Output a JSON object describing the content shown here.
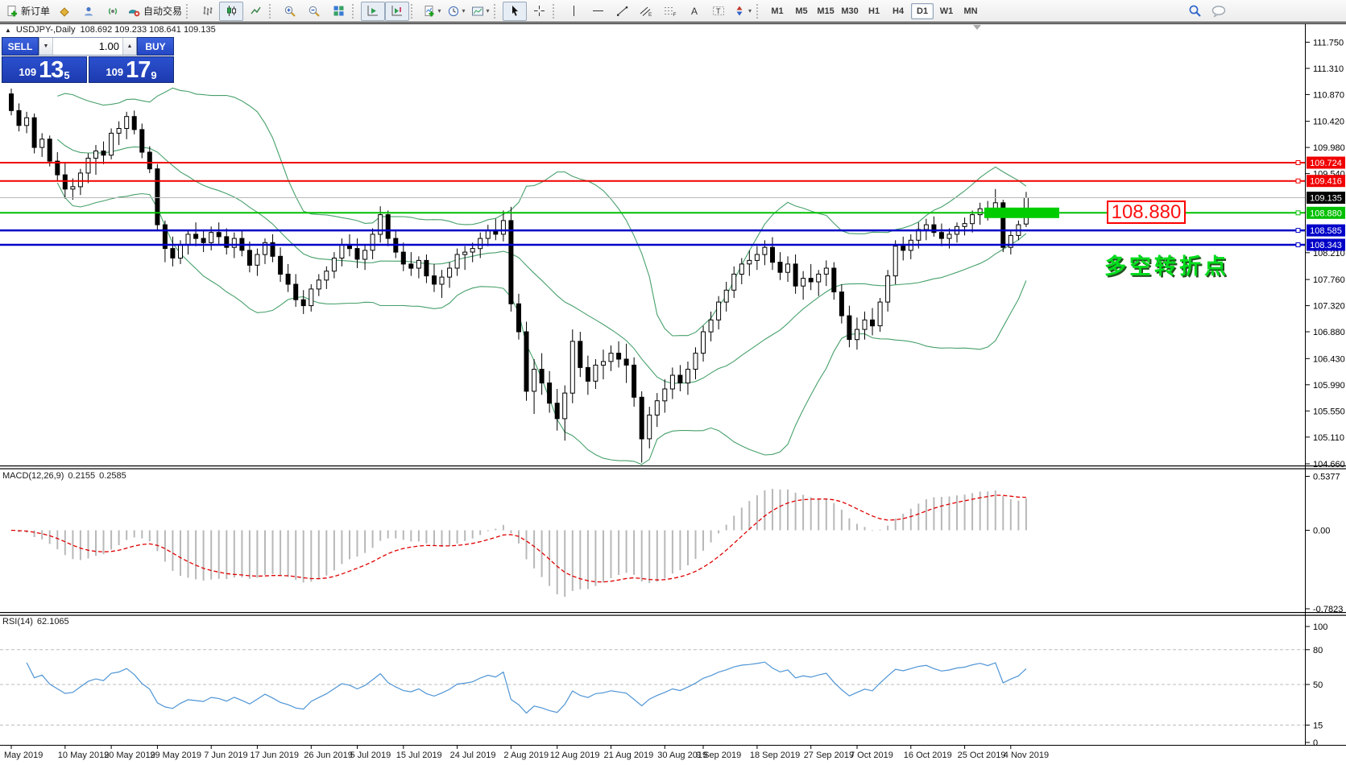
{
  "toolbar": {
    "new_order_label": "新订单",
    "autotrade_label": "自动交易",
    "timeframes": [
      "M1",
      "M5",
      "M15",
      "M30",
      "H1",
      "H4",
      "D1",
      "W1",
      "MN"
    ],
    "active_timeframe": "D1"
  },
  "chart": {
    "symbol_title": "USDJPY-,Daily",
    "ohlc_display": "108.692 109.233 108.641 109.135"
  },
  "trade_panel": {
    "sell_label": "SELL",
    "buy_label": "BUY",
    "volume": "1.00",
    "sell": {
      "prefix": "109",
      "big": "13",
      "sup": "5"
    },
    "buy": {
      "prefix": "109",
      "big": "17",
      "sup": "9"
    }
  },
  "annotations": {
    "price_label": "108.880",
    "note": "多空转折点"
  },
  "macd": {
    "label": "MACD(12,26,9)",
    "value1": "0.2155",
    "value2": "0.2585"
  },
  "rsi": {
    "label": "RSI(14)",
    "value": "62.1065"
  },
  "chart_data": {
    "type": "candlestick",
    "symbol": "USDJPY-",
    "timeframe": "Daily",
    "last_candle": {
      "open": 108.692,
      "high": 109.233,
      "low": 108.641,
      "close": 109.135
    },
    "current_price": {
      "value": 109.135,
      "label": "109.135",
      "badge_color": "#000000"
    },
    "hlines": [
      {
        "price": 109.724,
        "label": "109.724",
        "color": "#f00000",
        "width": 2
      },
      {
        "price": 109.416,
        "label": "109.416",
        "color": "#f00000",
        "width": 2
      },
      {
        "price": 108.88,
        "label": "108.880",
        "color": "#00c000",
        "width": 2
      },
      {
        "price": 108.585,
        "label": "108.585",
        "color": "#0000c8",
        "width": 2.5
      },
      {
        "price": 108.343,
        "label": "108.343",
        "color": "#0000c8",
        "width": 2.5
      }
    ],
    "highlight_bar": {
      "price": 108.88,
      "color": "#00cc00"
    },
    "indicators": [
      {
        "name": "Bollinger Bands",
        "period": 20,
        "deviation": 2,
        "color": "#47a06b"
      },
      {
        "name": "MACD",
        "fast": 12,
        "slow": 26,
        "signal": 9,
        "histogram_color": "#b8b8b8",
        "signal_color": "#e00000"
      },
      {
        "name": "RSI",
        "period": 14,
        "color": "#4f95d5",
        "levels": [
          80,
          50,
          15
        ]
      }
    ],
    "price_axis_ticks": [
      "111.750",
      "111.310",
      "110.870",
      "110.420",
      "109.980",
      "109.540",
      "108.210",
      "107.760",
      "107.320",
      "106.880",
      "106.430",
      "105.990",
      "105.550",
      "105.110",
      "104.660"
    ],
    "macd_axis_ticks": [
      "0.5377",
      "0.00",
      "-0.7823"
    ],
    "rsi_axis_ticks": [
      "100",
      "80",
      "50",
      "15",
      "0"
    ],
    "date_labels": [
      [
        0,
        "May 2019"
      ],
      [
        7,
        "10 May 2019"
      ],
      [
        13,
        "20 May 2019"
      ],
      [
        19,
        "29 May 2019"
      ],
      [
        26,
        "7 Jun 2019"
      ],
      [
        32,
        "17 Jun 2019"
      ],
      [
        39,
        "26 Jun 2019"
      ],
      [
        45,
        "5 Jul 2019"
      ],
      [
        51,
        "15 Jul 2019"
      ],
      [
        58,
        "24 Jul 2019"
      ],
      [
        65,
        "2 Aug 2019"
      ],
      [
        71,
        "12 Aug 2019"
      ],
      [
        78,
        "21 Aug 2019"
      ],
      [
        85,
        "30 Aug 2019"
      ],
      [
        90,
        "9 Sep 2019"
      ],
      [
        97,
        "18 Sep 2019"
      ],
      [
        104,
        "27 Sep 2019"
      ],
      [
        110,
        "7 Oct 2019"
      ],
      [
        117,
        "16 Oct 2019"
      ],
      [
        124,
        "25 Oct 2019"
      ],
      [
        130,
        "4 Nov 2019"
      ]
    ],
    "candles": [
      [
        110.88,
        110.97,
        110.52,
        110.6
      ],
      [
        110.6,
        110.72,
        110.25,
        110.35
      ],
      [
        110.35,
        110.58,
        110.22,
        110.48
      ],
      [
        110.48,
        110.55,
        109.88,
        109.98
      ],
      [
        109.98,
        110.22,
        109.82,
        110.12
      ],
      [
        110.12,
        110.18,
        109.66,
        109.75
      ],
      [
        109.75,
        109.9,
        109.42,
        109.52
      ],
      [
        109.52,
        109.72,
        109.12,
        109.28
      ],
      [
        109.28,
        109.46,
        109.1,
        109.32
      ],
      [
        109.32,
        109.62,
        109.18,
        109.55
      ],
      [
        109.55,
        109.88,
        109.38,
        109.8
      ],
      [
        109.8,
        110.02,
        109.52,
        109.92
      ],
      [
        109.92,
        110.08,
        109.7,
        109.85
      ],
      [
        109.85,
        110.3,
        109.78,
        110.22
      ],
      [
        110.22,
        110.42,
        110.02,
        110.3
      ],
      [
        110.3,
        110.58,
        110.12,
        110.5
      ],
      [
        110.5,
        110.6,
        110.2,
        110.28
      ],
      [
        110.28,
        110.38,
        109.8,
        109.9
      ],
      [
        109.9,
        110.0,
        109.55,
        109.62
      ],
      [
        109.62,
        109.7,
        108.58,
        108.68
      ],
      [
        108.68,
        108.75,
        108.05,
        108.28
      ],
      [
        108.28,
        108.48,
        107.98,
        108.12
      ],
      [
        108.12,
        108.42,
        108.02,
        108.35
      ],
      [
        108.35,
        108.6,
        108.18,
        108.52
      ],
      [
        108.52,
        108.72,
        108.32,
        108.45
      ],
      [
        108.45,
        108.58,
        108.22,
        108.38
      ],
      [
        108.38,
        108.65,
        108.25,
        108.55
      ],
      [
        108.55,
        108.72,
        108.35,
        108.48
      ],
      [
        108.48,
        108.62,
        108.18,
        108.3
      ],
      [
        108.3,
        108.55,
        108.12,
        108.45
      ],
      [
        108.45,
        108.58,
        108.15,
        108.25
      ],
      [
        108.25,
        108.4,
        107.88,
        108.0
      ],
      [
        108.0,
        108.28,
        107.82,
        108.18
      ],
      [
        108.18,
        108.45,
        108.02,
        108.38
      ],
      [
        108.38,
        108.52,
        108.05,
        108.15
      ],
      [
        108.15,
        108.3,
        107.72,
        107.85
      ],
      [
        107.85,
        108.02,
        107.55,
        107.68
      ],
      [
        107.68,
        107.85,
        107.3,
        107.42
      ],
      [
        107.42,
        107.58,
        107.18,
        107.32
      ],
      [
        107.32,
        107.68,
        107.22,
        107.6
      ],
      [
        107.6,
        107.85,
        107.48,
        107.75
      ],
      [
        107.75,
        107.98,
        107.6,
        107.9
      ],
      [
        107.9,
        108.22,
        107.78,
        108.12
      ],
      [
        108.12,
        108.45,
        107.98,
        108.35
      ],
      [
        108.35,
        108.52,
        108.15,
        108.28
      ],
      [
        108.28,
        108.45,
        107.95,
        108.1
      ],
      [
        108.1,
        108.35,
        107.92,
        108.25
      ],
      [
        108.25,
        108.62,
        108.1,
        108.52
      ],
      [
        108.52,
        108.99,
        108.38,
        108.85
      ],
      [
        108.85,
        108.92,
        108.32,
        108.45
      ],
      [
        108.45,
        108.6,
        108.12,
        108.22
      ],
      [
        108.22,
        108.38,
        107.9,
        108.02
      ],
      [
        108.02,
        108.22,
        107.82,
        107.95
      ],
      [
        107.95,
        108.15,
        107.78,
        108.08
      ],
      [
        108.08,
        108.18,
        107.7,
        107.82
      ],
      [
        107.82,
        108.02,
        107.55,
        107.68
      ],
      [
        107.68,
        107.92,
        107.45,
        107.8
      ],
      [
        107.8,
        108.05,
        107.62,
        107.95
      ],
      [
        107.95,
        108.28,
        107.82,
        108.18
      ],
      [
        108.18,
        108.32,
        107.92,
        108.22
      ],
      [
        108.22,
        108.38,
        108.05,
        108.28
      ],
      [
        108.28,
        108.55,
        108.12,
        108.45
      ],
      [
        108.45,
        108.68,
        108.32,
        108.58
      ],
      [
        108.58,
        108.78,
        108.42,
        108.52
      ],
      [
        108.52,
        108.92,
        108.4,
        108.75
      ],
      [
        108.75,
        108.98,
        107.22,
        107.35
      ],
      [
        107.35,
        107.52,
        106.75,
        106.88
      ],
      [
        106.88,
        107.05,
        105.72,
        105.88
      ],
      [
        105.88,
        106.42,
        105.5,
        106.25
      ],
      [
        106.25,
        106.52,
        105.82,
        106.02
      ],
      [
        106.02,
        106.22,
        105.52,
        105.68
      ],
      [
        105.68,
        105.92,
        105.22,
        105.42
      ],
      [
        105.42,
        105.98,
        105.05,
        105.85
      ],
      [
        105.85,
        106.92,
        105.68,
        106.72
      ],
      [
        106.72,
        106.88,
        106.12,
        106.28
      ],
      [
        106.28,
        106.48,
        105.82,
        106.05
      ],
      [
        106.05,
        106.42,
        105.92,
        106.32
      ],
      [
        106.32,
        106.58,
        106.08,
        106.38
      ],
      [
        106.38,
        106.65,
        106.22,
        106.52
      ],
      [
        106.52,
        106.72,
        106.28,
        106.42
      ],
      [
        106.42,
        106.68,
        106.02,
        106.32
      ],
      [
        106.32,
        106.45,
        105.62,
        105.78
      ],
      [
        105.78,
        105.88,
        104.68,
        105.08
      ],
      [
        105.08,
        105.62,
        104.92,
        105.48
      ],
      [
        105.48,
        105.85,
        105.28,
        105.72
      ],
      [
        105.72,
        106.08,
        105.52,
        105.92
      ],
      [
        105.92,
        106.28,
        105.75,
        106.15
      ],
      [
        106.15,
        106.32,
        105.88,
        106.02
      ],
      [
        106.02,
        106.38,
        105.82,
        106.25
      ],
      [
        106.25,
        106.62,
        106.08,
        106.52
      ],
      [
        106.52,
        106.98,
        106.38,
        106.88
      ],
      [
        106.88,
        107.22,
        106.72,
        107.08
      ],
      [
        107.08,
        107.48,
        106.92,
        107.38
      ],
      [
        107.38,
        107.72,
        107.22,
        107.58
      ],
      [
        107.58,
        107.98,
        107.45,
        107.85
      ],
      [
        107.85,
        108.12,
        107.68,
        108.02
      ],
      [
        108.02,
        108.25,
        107.82,
        108.08
      ],
      [
        108.08,
        108.32,
        107.92,
        108.18
      ],
      [
        108.18,
        108.42,
        108.0,
        108.3
      ],
      [
        108.3,
        108.47,
        107.92,
        108.05
      ],
      [
        108.05,
        108.22,
        107.75,
        107.88
      ],
      [
        107.88,
        108.15,
        107.72,
        108.02
      ],
      [
        108.02,
        108.18,
        107.52,
        107.65
      ],
      [
        107.65,
        107.9,
        107.42,
        107.78
      ],
      [
        107.78,
        108.02,
        107.58,
        107.72
      ],
      [
        107.72,
        107.92,
        107.48,
        107.85
      ],
      [
        107.85,
        108.08,
        107.65,
        107.95
      ],
      [
        107.95,
        108.05,
        107.42,
        107.55
      ],
      [
        107.55,
        107.68,
        107.02,
        107.15
      ],
      [
        107.15,
        107.32,
        106.62,
        106.75
      ],
      [
        106.75,
        107.12,
        106.58,
        106.92
      ],
      [
        106.92,
        107.22,
        106.75,
        107.08
      ],
      [
        107.08,
        107.28,
        106.82,
        106.98
      ],
      [
        106.98,
        107.45,
        106.88,
        107.38
      ],
      [
        107.38,
        107.92,
        107.22,
        107.82
      ],
      [
        107.82,
        108.42,
        107.68,
        108.32
      ],
      [
        108.32,
        108.48,
        108.08,
        108.25
      ],
      [
        108.25,
        108.52,
        108.1,
        108.42
      ],
      [
        108.42,
        108.72,
        108.28,
        108.6
      ],
      [
        108.6,
        108.78,
        108.42,
        108.68
      ],
      [
        108.68,
        108.82,
        108.48,
        108.55
      ],
      [
        108.55,
        108.7,
        108.32,
        108.45
      ],
      [
        108.45,
        108.62,
        108.28,
        108.52
      ],
      [
        108.52,
        108.72,
        108.38,
        108.65
      ],
      [
        108.65,
        108.8,
        108.5,
        108.7
      ],
      [
        108.7,
        108.92,
        108.55,
        108.85
      ],
      [
        108.85,
        109.05,
        108.68,
        108.95
      ],
      [
        108.95,
        109.08,
        108.75,
        108.88
      ],
      [
        108.88,
        109.28,
        108.82,
        109.05
      ],
      [
        109.05,
        109.1,
        108.22,
        108.3
      ],
      [
        108.3,
        108.6,
        108.18,
        108.5
      ],
      [
        108.5,
        108.75,
        108.42,
        108.68
      ],
      [
        108.692,
        109.233,
        108.641,
        109.135
      ]
    ]
  }
}
